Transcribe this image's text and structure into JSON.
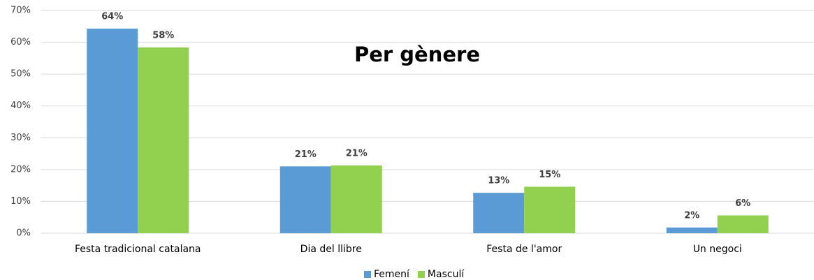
{
  "chart_data": {
    "type": "bar",
    "title": "Per gènere",
    "categories": [
      "Festa tradicional catalana",
      "Dia del llibre",
      "Festa de l'amor",
      "Un negoci"
    ],
    "series": [
      {
        "name": "Femení",
        "color": "#5b9bd5",
        "values": [
          64.3,
          21,
          12.7,
          1.8
        ],
        "value_labels": [
          "64%",
          "21%",
          "13%",
          "2%"
        ]
      },
      {
        "name": "Masculí",
        "color": "#92d050",
        "values": [
          58.4,
          21.3,
          14.6,
          5.6
        ],
        "value_labels": [
          "58%",
          "21%",
          "15%",
          "6%"
        ]
      }
    ],
    "ylim": [
      0,
      70
    ],
    "yticks": [
      {
        "value": 0,
        "label": "0%"
      },
      {
        "value": 10,
        "label": "10%"
      },
      {
        "value": 20,
        "label": "20%"
      },
      {
        "value": 30,
        "label": "30%"
      },
      {
        "value": 40,
        "label": "40%"
      },
      {
        "value": 50,
        "label": "50%"
      },
      {
        "value": 60,
        "label": "60%"
      },
      {
        "value": 70,
        "label": "70%"
      }
    ],
    "grid": true,
    "legend": "bottom"
  }
}
